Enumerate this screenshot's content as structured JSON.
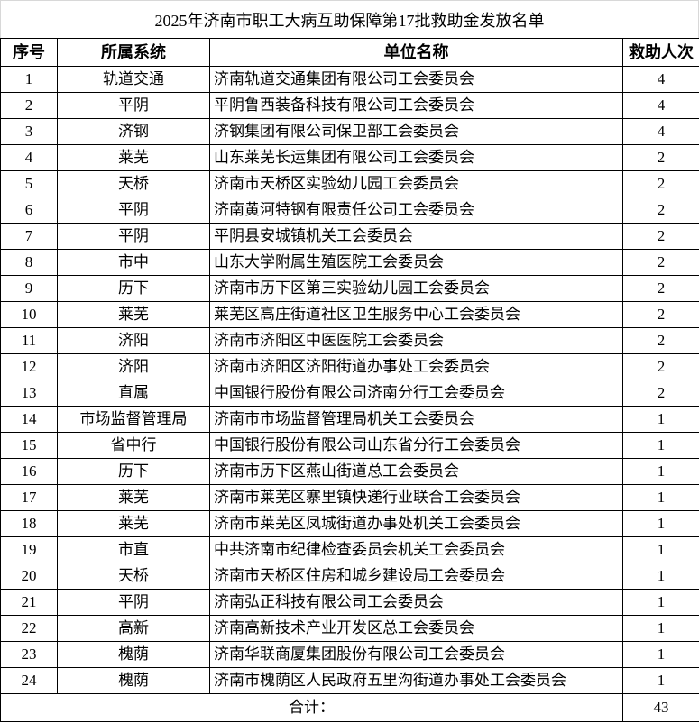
{
  "title": "2025年济南市职工大病互助保障第17批救助金发放名单",
  "headers": [
    "序号",
    "所属系统",
    "单位名称",
    "救助人次"
  ],
  "rows": [
    [
      "1",
      "轨道交通",
      "济南轨道交通集团有限公司工会委员会",
      "4"
    ],
    [
      "2",
      "平阴",
      "平阴鲁西装备科技有限公司工会委员会",
      "4"
    ],
    [
      "3",
      "济钢",
      "济钢集团有限公司保卫部工会委员会",
      "4"
    ],
    [
      "4",
      "莱芜",
      "山东莱芜长运集团有限公司工会委员会",
      "2"
    ],
    [
      "5",
      "天桥",
      "济南市天桥区实验幼儿园工会委员会",
      "2"
    ],
    [
      "6",
      "平阴",
      "济南黄河特钢有限责任公司工会委员会",
      "2"
    ],
    [
      "7",
      "平阴",
      "平阴县安城镇机关工会委员会",
      "2"
    ],
    [
      "8",
      "市中",
      "山东大学附属生殖医院工会委员会",
      "2"
    ],
    [
      "9",
      "历下",
      "济南市历下区第三实验幼儿园工会委员会",
      "2"
    ],
    [
      "10",
      "莱芜",
      "莱芜区高庄街道社区卫生服务中心工会委员会",
      "2"
    ],
    [
      "11",
      "济阳",
      "济南市济阳区中医医院工会委员会",
      "2"
    ],
    [
      "12",
      "济阳",
      "济南市济阳区济阳街道办事处工会委员会",
      "2"
    ],
    [
      "13",
      "直属",
      "中国银行股份有限公司济南分行工会委员会",
      "2"
    ],
    [
      "14",
      "市场监督管理局",
      "济南市市场监督管理局机关工会委员会",
      "1"
    ],
    [
      "15",
      "省中行",
      "中国银行股份有限公司山东省分行工会委员会",
      "1"
    ],
    [
      "16",
      "历下",
      "济南市历下区燕山街道总工会委员会",
      "1"
    ],
    [
      "17",
      "莱芜",
      "济南市莱芜区寨里镇快递行业联合工会委员会",
      "1"
    ],
    [
      "18",
      "莱芜",
      "济南市莱芜区凤城街道办事处机关工会委员会",
      "1"
    ],
    [
      "19",
      "市直",
      "中共济南市纪律检查委员会机关工会委员会",
      "1"
    ],
    [
      "20",
      "天桥",
      "济南市天桥区住房和城乡建设局工会委员会",
      "1"
    ],
    [
      "21",
      "平阴",
      "济南弘正科技有限公司工会委员会",
      "1"
    ],
    [
      "22",
      "高新",
      "济南高新技术产业开发区总工会委员会",
      "1"
    ],
    [
      "23",
      "槐荫",
      "济南华联商厦集团股份有限公司工会委员会",
      "1"
    ],
    [
      "24",
      "槐荫",
      "济南市槐荫区人民政府五里沟街道办事处工会委员会",
      "1"
    ]
  ],
  "total": {
    "label": "合计：",
    "value": "43"
  }
}
